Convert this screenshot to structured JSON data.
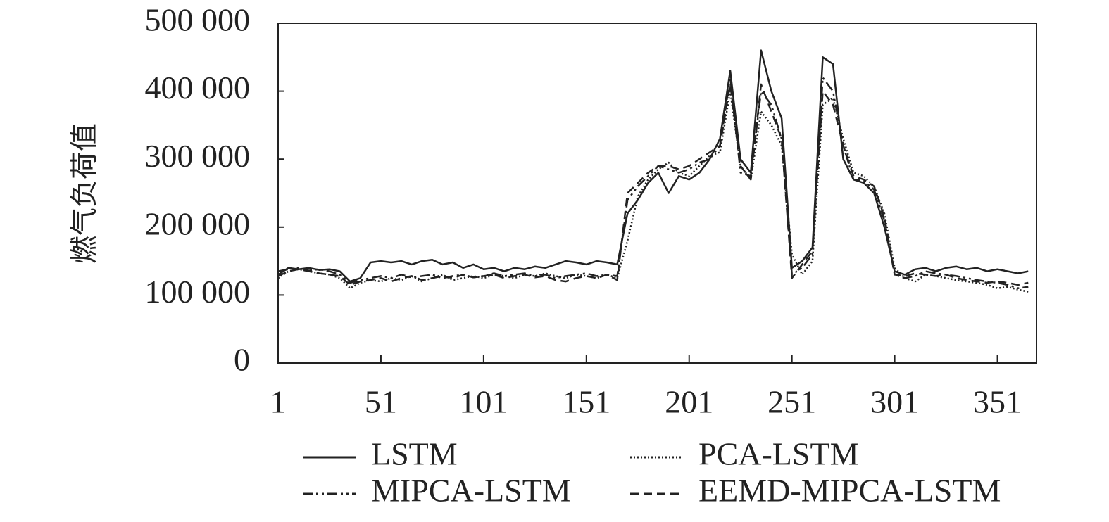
{
  "chart_data": {
    "type": "line",
    "y_label": "燃气负荷值",
    "x": [
      1,
      6,
      11,
      16,
      21,
      26,
      31,
      36,
      41,
      46,
      51,
      56,
      61,
      66,
      71,
      76,
      81,
      86,
      91,
      96,
      101,
      106,
      111,
      116,
      121,
      126,
      131,
      136,
      141,
      146,
      151,
      156,
      161,
      166,
      171,
      176,
      181,
      186,
      191,
      196,
      201,
      206,
      211,
      216,
      221,
      226,
      231,
      236,
      241,
      246,
      251,
      256,
      261,
      266,
      271,
      276,
      281,
      286,
      291,
      296,
      301,
      306,
      311,
      316,
      321,
      326,
      331,
      336,
      341,
      346,
      351,
      356,
      361,
      366
    ],
    "xlim": [
      1,
      370
    ],
    "xticks": [
      1,
      51,
      101,
      151,
      201,
      251,
      301,
      351
    ],
    "ylim": [
      0,
      500000
    ],
    "yticks": [
      0,
      {
        "value": 100000,
        "label": "100 000"
      },
      {
        "value": 200000,
        "label": "200 000"
      },
      {
        "value": 300000,
        "label": "300 000"
      },
      {
        "value": 400000,
        "label": "400 000"
      },
      {
        "value": 500000,
        "label": "500 000"
      }
    ],
    "series": [
      {
        "name": "LSTM",
        "color": "#222222",
        "dash": "solid",
        "values": [
          130000,
          140000,
          138000,
          140000,
          137000,
          138000,
          135000,
          120000,
          125000,
          148000,
          150000,
          148000,
          150000,
          145000,
          150000,
          152000,
          145000,
          148000,
          140000,
          145000,
          138000,
          140000,
          135000,
          140000,
          138000,
          142000,
          140000,
          145000,
          150000,
          148000,
          145000,
          150000,
          148000,
          145000,
          220000,
          240000,
          265000,
          280000,
          250000,
          275000,
          270000,
          280000,
          300000,
          330000,
          430000,
          300000,
          280000,
          460000,
          400000,
          360000,
          140000,
          150000,
          170000,
          450000,
          440000,
          300000,
          270000,
          265000,
          250000,
          200000,
          135000,
          130000,
          138000,
          140000,
          135000,
          140000,
          142000,
          138000,
          140000,
          135000,
          138000,
          135000,
          132000,
          135000
        ]
      },
      {
        "name": "PCA-LSTM",
        "color": "#222222",
        "dash": "dotted",
        "values": [
          125000,
          135000,
          138000,
          135000,
          132000,
          130000,
          125000,
          110000,
          118000,
          122000,
          120000,
          125000,
          122000,
          128000,
          120000,
          125000,
          130000,
          122000,
          125000,
          128000,
          125000,
          130000,
          128000,
          125000,
          130000,
          128000,
          132000,
          128000,
          125000,
          130000,
          128000,
          125000,
          130000,
          125000,
          180000,
          245000,
          270000,
          285000,
          295000,
          280000,
          275000,
          290000,
          305000,
          310000,
          400000,
          290000,
          270000,
          370000,
          350000,
          320000,
          160000,
          130000,
          150000,
          380000,
          390000,
          330000,
          280000,
          275000,
          260000,
          220000,
          140000,
          125000,
          120000,
          130000,
          128000,
          125000,
          122000,
          120000,
          118000,
          115000,
          110000,
          112000,
          108000,
          105000
        ]
      },
      {
        "name": "MIPCA-LSTM",
        "color": "#222222",
        "dash": "dash-dot-dot",
        "values": [
          135000,
          138000,
          140000,
          136000,
          138000,
          135000,
          130000,
          118000,
          122000,
          125000,
          128000,
          125000,
          130000,
          126000,
          128000,
          130000,
          125000,
          128000,
          130000,
          126000,
          128000,
          132000,
          128000,
          130000,
          132000,
          128000,
          130000,
          125000,
          128000,
          130000,
          132000,
          128000,
          130000,
          128000,
          240000,
          260000,
          275000,
          290000,
          285000,
          280000,
          285000,
          295000,
          300000,
          320000,
          420000,
          280000,
          275000,
          400000,
          380000,
          330000,
          130000,
          140000,
          160000,
          420000,
          400000,
          320000,
          270000,
          268000,
          255000,
          210000,
          130000,
          125000,
          128000,
          135000,
          132000,
          130000,
          128000,
          125000,
          122000,
          120000,
          118000,
          115000,
          110000,
          112000
        ]
      },
      {
        "name": "EEMD-MIPCA-LSTM",
        "color": "#222222",
        "dash": "dashed",
        "values": [
          128000,
          135000,
          138000,
          135000,
          132000,
          130000,
          128000,
          115000,
          120000,
          122000,
          125000,
          120000,
          125000,
          128000,
          122000,
          125000,
          128000,
          125000,
          130000,
          126000,
          128000,
          130000,
          125000,
          128000,
          130000,
          126000,
          128000,
          122000,
          120000,
          125000,
          128000,
          125000,
          130000,
          122000,
          250000,
          265000,
          280000,
          290000,
          290000,
          285000,
          290000,
          300000,
          310000,
          320000,
          410000,
          290000,
          270000,
          410000,
          370000,
          330000,
          125000,
          145000,
          165000,
          400000,
          380000,
          320000,
          275000,
          270000,
          260000,
          215000,
          130000,
          128000,
          132000,
          130000,
          128000,
          130000,
          125000,
          122000,
          120000,
          118000,
          120000,
          118000,
          115000,
          118000
        ]
      }
    ]
  }
}
